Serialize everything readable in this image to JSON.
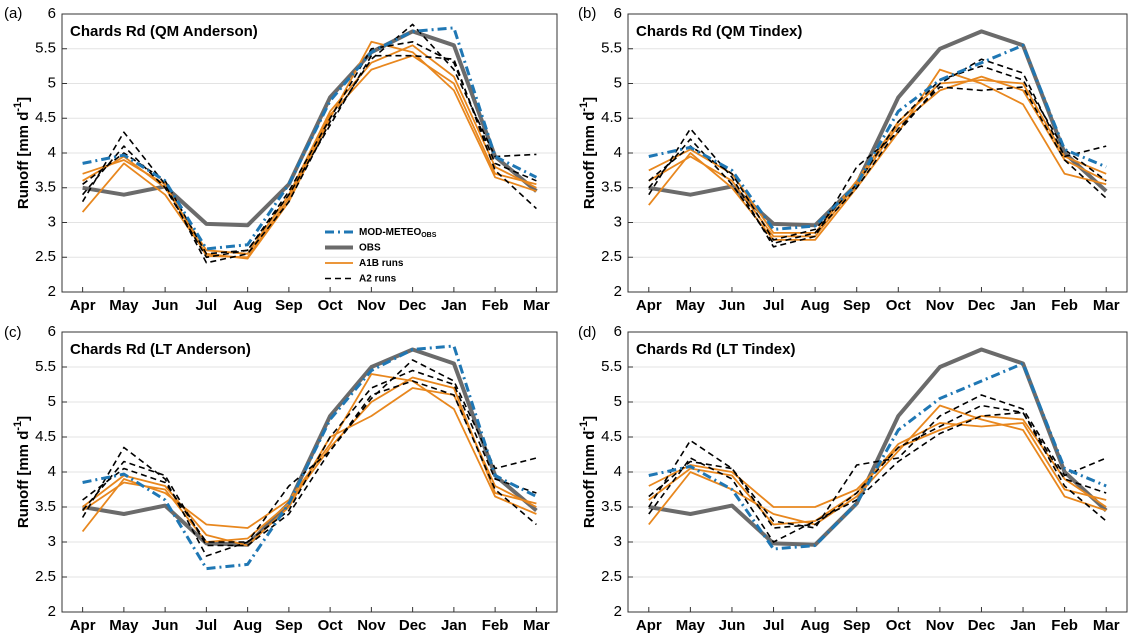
{
  "chart_data": [
    {
      "type": "line",
      "panel_label": "(a)",
      "title": "Chards Rd (QM Anderson)",
      "ylabel": "Runoff [mm d",
      "ylabel_sup": "-1",
      "ylabel_end": "]",
      "categories": [
        "Apr",
        "May",
        "Jun",
        "Jul",
        "Aug",
        "Sep",
        "Oct",
        "Nov",
        "Dec",
        "Jan",
        "Feb",
        "Mar"
      ],
      "ylim": [
        2,
        6
      ],
      "yticks": [
        2,
        2.5,
        3,
        3.5,
        4,
        4.5,
        5,
        5.5,
        6
      ],
      "grid": true,
      "legend": "center",
      "series": [
        {
          "name": "MOD-METEO",
          "name_sub": "OBS",
          "color": "#1f77b4",
          "style": "dashdot",
          "values": [
            3.85,
            3.97,
            3.6,
            2.62,
            2.68,
            3.55,
            4.75,
            5.45,
            5.75,
            5.8,
            3.95,
            3.65
          ]
        },
        {
          "name": "OBS",
          "color": "#6b6b6b",
          "style": "thick",
          "values": [
            3.5,
            3.4,
            3.52,
            2.98,
            2.96,
            3.55,
            4.8,
            5.45,
            5.75,
            5.55,
            3.95,
            3.45
          ]
        },
        {
          "name": "A1B runs",
          "color": "#e8871e",
          "style": "solid",
          "values": [
            3.15,
            3.85,
            3.4,
            2.55,
            2.48,
            3.3,
            4.5,
            5.6,
            5.45,
            4.9,
            3.65,
            3.45
          ]
        },
        {
          "color": "#e8871e",
          "style": "solid",
          "values": [
            3.6,
            3.95,
            3.5,
            2.6,
            2.55,
            3.4,
            4.6,
            5.3,
            5.55,
            5.1,
            3.8,
            3.5
          ]
        },
        {
          "color": "#e8871e",
          "style": "solid",
          "values": [
            3.7,
            3.9,
            3.55,
            2.52,
            2.5,
            3.35,
            4.55,
            5.2,
            5.4,
            5.0,
            3.7,
            3.55
          ]
        },
        {
          "name": "A2 runs",
          "color": "#000000",
          "style": "dashed",
          "values": [
            3.3,
            4.3,
            3.55,
            2.42,
            2.55,
            3.3,
            4.45,
            5.35,
            5.85,
            5.2,
            3.95,
            3.98
          ]
        },
        {
          "color": "#000000",
          "style": "dashed",
          "values": [
            3.4,
            4.1,
            3.5,
            2.5,
            2.6,
            3.4,
            4.4,
            5.4,
            5.4,
            5.35,
            3.75,
            3.2
          ]
        },
        {
          "color": "#000000",
          "style": "dashed",
          "values": [
            3.55,
            4.0,
            3.6,
            2.55,
            2.6,
            3.45,
            4.5,
            5.5,
            5.6,
            5.3,
            3.85,
            3.6
          ]
        }
      ]
    },
    {
      "type": "line",
      "panel_label": "(b)",
      "title": "Chards Rd (QM Tindex)",
      "ylabel": "Runoff [mm d",
      "ylabel_sup": "-1",
      "ylabel_end": "]",
      "categories": [
        "Apr",
        "May",
        "Jun",
        "Jul",
        "Aug",
        "Sep",
        "Oct",
        "Nov",
        "Dec",
        "Jan",
        "Feb",
        "Mar"
      ],
      "ylim": [
        2,
        6
      ],
      "yticks": [
        2,
        2.5,
        3,
        3.5,
        4,
        4.5,
        5,
        5.5,
        6
      ],
      "grid": true,
      "series": [
        {
          "color": "#1f77b4",
          "style": "dashdot",
          "values": [
            3.95,
            4.08,
            3.75,
            2.9,
            2.95,
            3.55,
            4.6,
            5.05,
            5.3,
            5.55,
            4.05,
            3.8
          ]
        },
        {
          "color": "#6b6b6b",
          "style": "thick",
          "values": [
            3.5,
            3.4,
            3.52,
            2.98,
            2.96,
            3.55,
            4.8,
            5.5,
            5.75,
            5.55,
            4.0,
            3.45
          ]
        },
        {
          "color": "#e8871e",
          "style": "solid",
          "values": [
            3.25,
            4.0,
            3.5,
            2.75,
            2.75,
            3.5,
            4.3,
            5.2,
            5.0,
            4.7,
            3.7,
            3.55
          ]
        },
        {
          "color": "#e8871e",
          "style": "solid",
          "values": [
            3.6,
            3.95,
            3.6,
            2.8,
            2.8,
            3.55,
            4.4,
            4.9,
            5.1,
            4.9,
            3.9,
            3.6
          ]
        },
        {
          "color": "#e8871e",
          "style": "solid",
          "values": [
            3.75,
            4.05,
            3.7,
            2.85,
            2.85,
            3.6,
            4.45,
            5.0,
            5.05,
            5.0,
            3.95,
            3.7
          ]
        },
        {
          "color": "#000000",
          "style": "dashed",
          "values": [
            3.4,
            4.35,
            3.65,
            2.65,
            2.8,
            3.8,
            4.3,
            5.0,
            5.35,
            5.15,
            3.95,
            4.1
          ]
        },
        {
          "color": "#000000",
          "style": "dashed",
          "values": [
            3.5,
            4.2,
            3.55,
            2.7,
            2.85,
            3.5,
            4.35,
            4.95,
            4.9,
            4.95,
            3.9,
            3.35
          ]
        },
        {
          "color": "#000000",
          "style": "dashed",
          "values": [
            3.6,
            4.1,
            3.7,
            2.75,
            2.9,
            3.55,
            4.45,
            5.05,
            5.25,
            5.05,
            4.05,
            3.6
          ]
        }
      ]
    },
    {
      "type": "line",
      "panel_label": "(c)",
      "title": "Chards Rd (LT Anderson)",
      "ylabel": "Runoff [mm d",
      "ylabel_sup": "-1",
      "ylabel_end": "]",
      "categories": [
        "Apr",
        "May",
        "Jun",
        "Jul",
        "Aug",
        "Sep",
        "Oct",
        "Nov",
        "Dec",
        "Jan",
        "Feb",
        "Mar"
      ],
      "ylim": [
        2,
        6
      ],
      "yticks": [
        2,
        2.5,
        3,
        3.5,
        4,
        4.5,
        5,
        5.5,
        6
      ],
      "grid": true,
      "series": [
        {
          "color": "#1f77b4",
          "style": "dashdot",
          "values": [
            3.85,
            3.97,
            3.6,
            2.62,
            2.68,
            3.55,
            4.75,
            5.45,
            5.75,
            5.8,
            3.95,
            3.65
          ]
        },
        {
          "color": "#6b6b6b",
          "style": "thick",
          "values": [
            3.5,
            3.4,
            3.52,
            2.98,
            2.96,
            3.55,
            4.8,
            5.5,
            5.75,
            5.55,
            3.95,
            3.45
          ]
        },
        {
          "color": "#e8871e",
          "style": "solid",
          "values": [
            3.15,
            3.9,
            3.7,
            3.25,
            3.2,
            3.6,
            4.4,
            5.4,
            5.3,
            4.9,
            3.65,
            3.4
          ]
        },
        {
          "color": "#e8871e",
          "style": "solid",
          "values": [
            3.5,
            3.95,
            3.8,
            3.1,
            2.95,
            3.5,
            4.5,
            4.8,
            5.2,
            5.1,
            3.8,
            3.5
          ]
        },
        {
          "color": "#e8871e",
          "style": "solid",
          "values": [
            3.45,
            3.85,
            3.75,
            3.0,
            3.05,
            3.55,
            4.35,
            5.0,
            5.35,
            5.2,
            3.7,
            3.55
          ]
        },
        {
          "color": "#000000",
          "style": "dashed",
          "values": [
            3.35,
            4.35,
            3.9,
            2.8,
            3.0,
            3.8,
            4.3,
            5.05,
            5.6,
            5.3,
            4.05,
            4.2
          ]
        },
        {
          "color": "#000000",
          "style": "dashed",
          "values": [
            3.45,
            4.15,
            3.95,
            2.95,
            2.95,
            3.4,
            4.3,
            5.1,
            5.3,
            5.1,
            3.75,
            3.25
          ]
        },
        {
          "color": "#000000",
          "style": "dashed",
          "values": [
            3.6,
            4.05,
            3.85,
            3.0,
            3.0,
            3.45,
            4.5,
            5.2,
            5.45,
            5.25,
            3.9,
            3.7
          ]
        }
      ]
    },
    {
      "type": "line",
      "panel_label": "(d)",
      "title": "Chards Rd (LT Tindex)",
      "ylabel": "Runoff [mm d",
      "ylabel_sup": "-1",
      "ylabel_end": "]",
      "categories": [
        "Apr",
        "May",
        "Jun",
        "Jul",
        "Aug",
        "Sep",
        "Oct",
        "Nov",
        "Dec",
        "Jan",
        "Feb",
        "Mar"
      ],
      "ylim": [
        2,
        6
      ],
      "yticks": [
        2,
        2.5,
        3,
        3.5,
        4,
        4.5,
        5,
        5.5,
        6
      ],
      "grid": true,
      "series": [
        {
          "color": "#1f77b4",
          "style": "dashdot",
          "values": [
            3.95,
            4.08,
            3.75,
            2.9,
            2.95,
            3.55,
            4.6,
            5.05,
            5.3,
            5.55,
            4.05,
            3.8
          ]
        },
        {
          "color": "#6b6b6b",
          "style": "thick",
          "values": [
            3.5,
            3.4,
            3.52,
            2.98,
            2.96,
            3.55,
            4.8,
            5.5,
            5.75,
            5.55,
            4.0,
            3.45
          ]
        },
        {
          "color": "#e8871e",
          "style": "solid",
          "values": [
            3.25,
            4.0,
            3.75,
            3.4,
            3.25,
            3.65,
            4.3,
            4.95,
            4.75,
            4.6,
            3.65,
            3.45
          ]
        },
        {
          "color": "#e8871e",
          "style": "solid",
          "values": [
            3.8,
            4.1,
            4.0,
            3.5,
            3.5,
            3.75,
            4.35,
            4.6,
            4.8,
            4.75,
            3.9,
            3.5
          ]
        },
        {
          "color": "#e8871e",
          "style": "solid",
          "values": [
            3.6,
            4.05,
            3.95,
            3.25,
            3.3,
            3.7,
            4.4,
            4.7,
            4.65,
            4.7,
            3.75,
            3.6
          ]
        },
        {
          "color": "#000000",
          "style": "dashed",
          "values": [
            3.5,
            4.45,
            4.05,
            3.3,
            3.2,
            4.1,
            4.2,
            4.8,
            5.1,
            4.9,
            3.95,
            4.2
          ]
        },
        {
          "color": "#000000",
          "style": "dashed",
          "values": [
            3.4,
            4.2,
            3.9,
            3.0,
            3.3,
            3.6,
            4.15,
            4.55,
            4.8,
            4.85,
            3.8,
            3.3
          ]
        },
        {
          "color": "#000000",
          "style": "dashed",
          "values": [
            3.65,
            4.15,
            4.05,
            3.2,
            3.25,
            3.7,
            4.35,
            4.65,
            4.95,
            4.85,
            3.9,
            3.7
          ]
        }
      ]
    }
  ]
}
